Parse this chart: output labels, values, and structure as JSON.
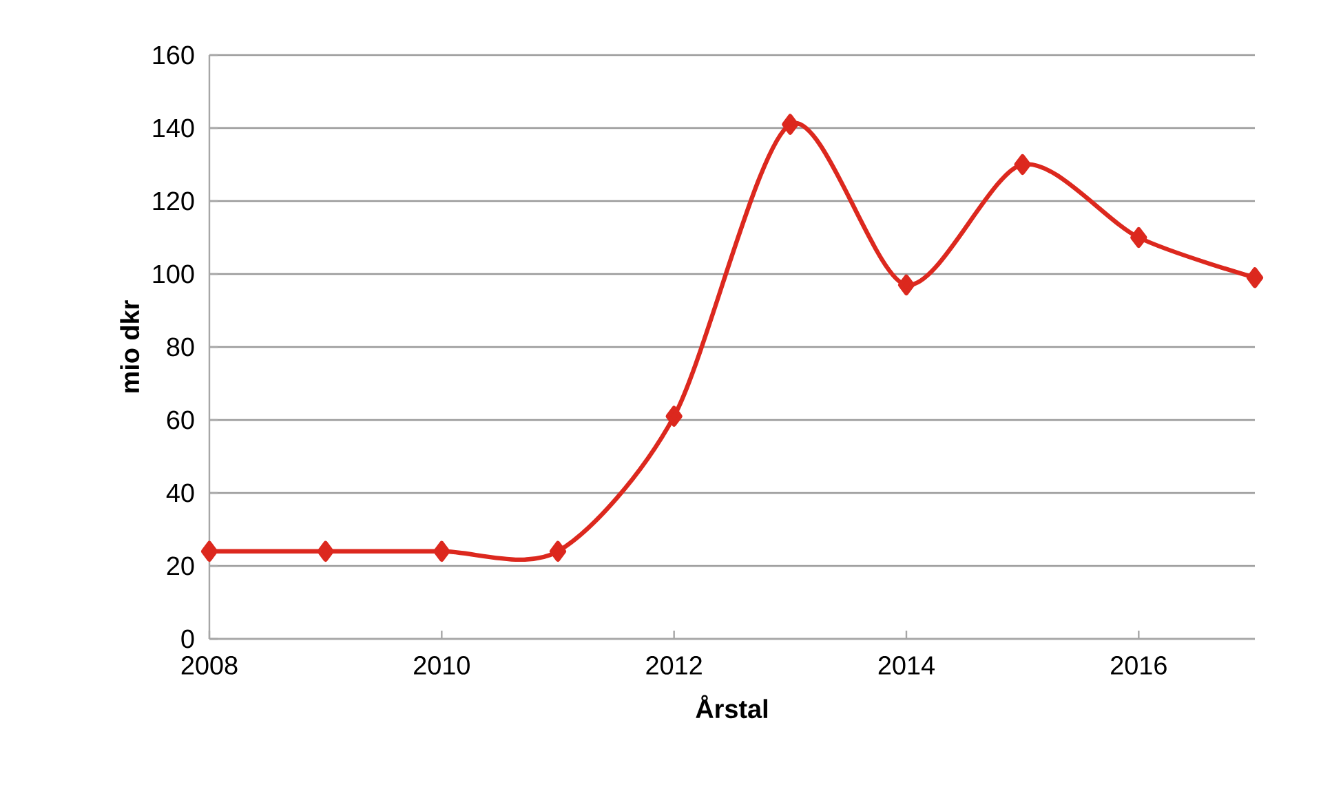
{
  "chart_data": {
    "type": "line",
    "xlabel": "Årstal",
    "ylabel": "mio dkr",
    "x": [
      2008,
      2009,
      2010,
      2011,
      2012,
      2013,
      2014,
      2015,
      2016,
      2017
    ],
    "series": [
      {
        "color": "#dc281e",
        "values": [
          24,
          24,
          24,
          24,
          61,
          141,
          97,
          130,
          110,
          99
        ]
      }
    ],
    "xlim": [
      2008,
      2017
    ],
    "xticks": [
      2008,
      2010,
      2012,
      2014,
      2016
    ],
    "ylim": [
      0,
      160
    ],
    "yticks": [
      0,
      20,
      40,
      60,
      80,
      100,
      120,
      140,
      160
    ],
    "grid": "y",
    "marker": "diamond",
    "line_style": "solid"
  }
}
